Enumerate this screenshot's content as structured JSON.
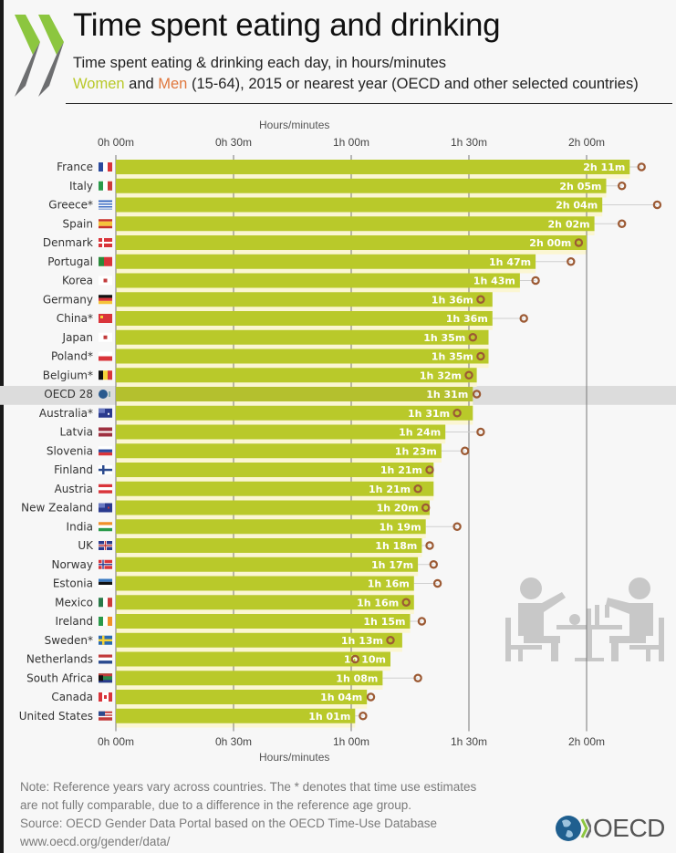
{
  "header": {
    "title": "Time spent eating and drinking",
    "subtitle_line1": "Time spent eating & drinking each day, in hours/minutes",
    "legend_women": "Women",
    "legend_and": " and ",
    "legend_men": "Men",
    "subtitle_line2_rest": " (15-64), 2015 or nearest year (OECD and other selected countries)"
  },
  "colors": {
    "women_bar": "#b9c92a",
    "men_marker": "#e0773d",
    "men_marker_stroke": "#9c5a34",
    "highlight_row": "#dcdcdc",
    "stripe": "#fbf6d2"
  },
  "footer": {
    "note_line1": "Note: Reference years vary across countries. The * denotes that time use estimates",
    "note_line2": "are not fully comparable, due to a difference in the reference age group.",
    "source": "Source: OECD Gender Data Portal based on the OECD Time-Use Database",
    "url": "www.oecd.org/gender/data/",
    "logo_text": "OECD"
  },
  "chart_data": {
    "type": "bar",
    "orientation": "horizontal",
    "title": "Time spent eating and drinking",
    "xlabel": "Hours/minutes",
    "ylabel": "",
    "xlim_minutes": [
      0,
      135
    ],
    "x_ticks_minutes": [
      0,
      30,
      60,
      90,
      120
    ],
    "x_tick_labels": [
      "0h 00m",
      "0h 30m",
      "1h 00m",
      "1h 30m",
      "2h 00m"
    ],
    "grid": true,
    "highlight": "OECD 28",
    "categories": [
      "France",
      "Italy",
      "Greece*",
      "Spain",
      "Denmark",
      "Portugal",
      "Korea",
      "Germany",
      "China*",
      "Japan",
      "Poland*",
      "Belgium*",
      "OECD 28",
      "Australia*",
      "Latvia",
      "Slovenia",
      "Finland",
      "Austria",
      "New Zealand",
      "India",
      "UK",
      "Norway",
      "Estonia",
      "Mexico",
      "Ireland",
      "Sweden*",
      "Netherlands",
      "South Africa",
      "Canada",
      "United States"
    ],
    "flags": [
      "fr",
      "it",
      "gr",
      "es",
      "dk",
      "pt",
      "kr",
      "de",
      "cn",
      "jp",
      "pl",
      "be",
      "oecd",
      "au",
      "lv",
      "si",
      "fi",
      "at",
      "nz",
      "in",
      "uk",
      "no",
      "ee",
      "mx",
      "ie",
      "se",
      "nl",
      "za",
      "ca",
      "us"
    ],
    "series": [
      {
        "name": "Women",
        "style": "bar",
        "values_minutes": [
          131,
          125,
          124,
          122,
          120,
          107,
          103,
          96,
          96,
          95,
          95,
          92,
          91,
          91,
          84,
          83,
          81,
          81,
          80,
          79,
          78,
          77,
          76,
          76,
          75,
          73,
          70,
          68,
          64,
          61
        ],
        "labels": [
          "2h 11m",
          "2h 05m",
          "2h 04m",
          "2h 02m",
          "2h 00m",
          "1h 47m",
          "1h 43m",
          "1h 36m",
          "1h 36m",
          "1h 35m",
          "1h 35m",
          "1h 32m",
          "1h 31m",
          "1h 31m",
          "1h 24m",
          "1h 23m",
          "1h 21m",
          "1h 21m",
          "1h 20m",
          "1h 19m",
          "1h 18m",
          "1h 17m",
          "1h 16m",
          "1h 16m",
          "1h 15m",
          "1h 13m",
          "1h 10m",
          "1h 08m",
          "1h 04m",
          "1h 01m"
        ]
      },
      {
        "name": "Men",
        "style": "marker",
        "values_minutes": [
          134,
          129,
          138,
          129,
          118,
          116,
          107,
          93,
          104,
          91,
          93,
          90,
          92,
          87,
          93,
          89,
          80,
          77,
          79,
          87,
          80,
          81,
          82,
          74,
          78,
          70,
          61,
          77,
          65,
          63
        ]
      }
    ]
  }
}
